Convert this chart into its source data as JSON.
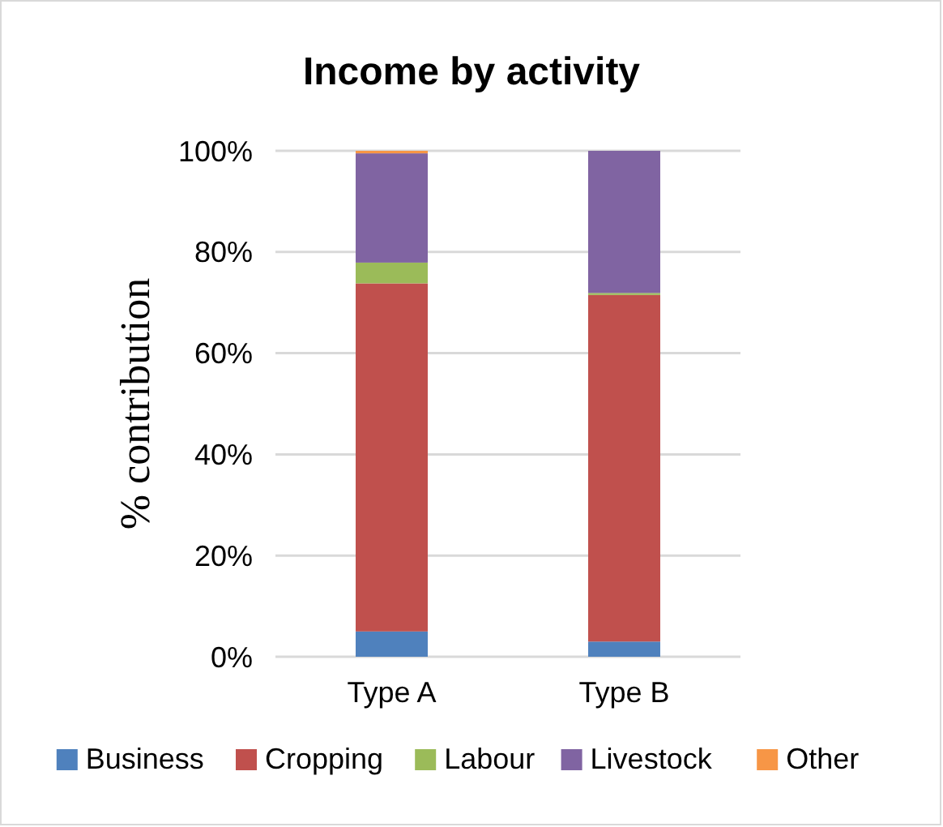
{
  "chart_data": {
    "type": "bar",
    "title": "Income by activity",
    "ylabel": "% contribution",
    "categories": [
      "Type A",
      "Type B"
    ],
    "stacked": true,
    "ylim": [
      0,
      100
    ],
    "yticks": [
      {
        "value": 0,
        "label": "0%"
      },
      {
        "value": 20,
        "label": "20%"
      },
      {
        "value": 40,
        "label": "40%"
      },
      {
        "value": 60,
        "label": "60%"
      },
      {
        "value": 80,
        "label": "80%"
      },
      {
        "value": 100,
        "label": "100%"
      }
    ],
    "grid": "y",
    "legend": "bottom",
    "series": [
      {
        "name": "Business",
        "color": "#4f81bd",
        "values": [
          5.0,
          3.0
        ]
      },
      {
        "name": "Cropping",
        "color": "#c0504d",
        "values": [
          68.8,
          68.5
        ]
      },
      {
        "name": "Labour",
        "color": "#9bbb59",
        "values": [
          4.1,
          0.4
        ]
      },
      {
        "name": "Livestock",
        "color": "#8064a2",
        "values": [
          21.6,
          28.1
        ]
      },
      {
        "name": "Other",
        "color": "#f79646",
        "values": [
          0.5,
          0
        ]
      }
    ]
  }
}
